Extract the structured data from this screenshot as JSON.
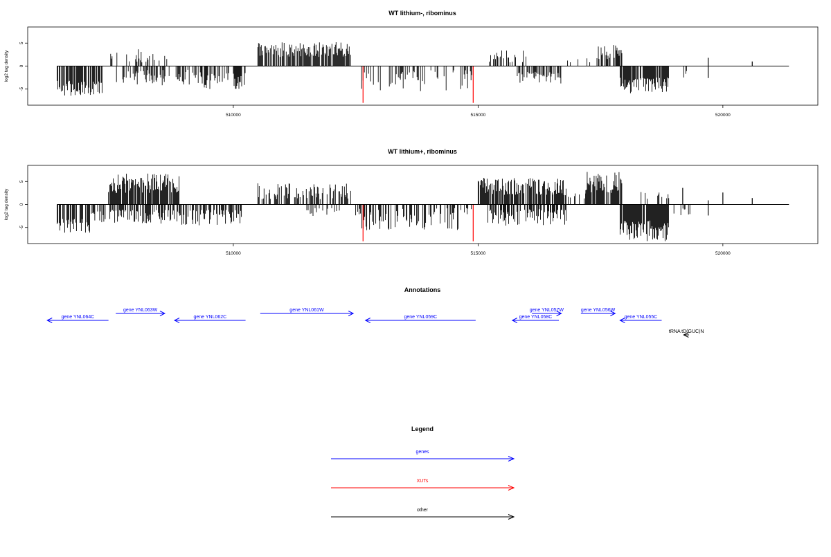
{
  "colors": {
    "gene": "#0000ff",
    "xut": "#ff0000",
    "other": "#000000",
    "bar": "#000000",
    "highlight": "#ff0000"
  },
  "chart_data": [
    {
      "type": "bar",
      "title": "WT lithium-, ribominus",
      "xlabel": "",
      "ylabel": "log2 tag density",
      "xlim": [
        505800,
        521940
      ],
      "ylim": [
        -8.5,
        8.5
      ],
      "x_ticks": [
        510000,
        515000,
        520000
      ],
      "x_tick_labels": [
        "510000",
        "515000",
        "520000"
      ],
      "y_ticks": [
        -5,
        0,
        5
      ],
      "y_tick_labels": [
        "-5",
        "0",
        "5"
      ],
      "baseline": 0,
      "baseline_range": [
        506400,
        521350
      ],
      "grid": false,
      "highlight_bars": [
        {
          "x": 512650,
          "value": -8.0
        },
        {
          "x": 514900,
          "value": -8.0
        }
      ],
      "regions": [
        {
          "start": 506400,
          "end": 507320,
          "strand": "minus",
          "min": 3.2,
          "max": 6.6,
          "density": 0.75
        },
        {
          "start": 507480,
          "end": 508640,
          "strand": "plus",
          "min": 0.8,
          "max": 4.0,
          "density": 0.3
        },
        {
          "start": 507600,
          "end": 509350,
          "strand": "minus",
          "min": 0.8,
          "max": 4.2,
          "density": 0.45
        },
        {
          "start": 509350,
          "end": 510250,
          "strand": "minus",
          "min": 1.5,
          "max": 5.0,
          "density": 0.55
        },
        {
          "start": 510500,
          "end": 512400,
          "strand": "plus",
          "min": 2.0,
          "max": 5.2,
          "density": 0.8
        },
        {
          "start": 512550,
          "end": 514900,
          "strand": "minus",
          "min": 0.8,
          "max": 5.6,
          "density": 0.3
        },
        {
          "start": 515200,
          "end": 516000,
          "strand": "plus",
          "min": 0.8,
          "max": 3.5,
          "density": 0.3
        },
        {
          "start": 515800,
          "end": 516700,
          "strand": "minus",
          "min": 1.2,
          "max": 3.8,
          "density": 0.5
        },
        {
          "start": 516700,
          "end": 517300,
          "strand": "plus",
          "min": 0.8,
          "max": 1.8,
          "density": 0.15
        },
        {
          "start": 517400,
          "end": 517950,
          "strand": "plus",
          "min": 1.5,
          "max": 5.2,
          "density": 0.7
        },
        {
          "start": 517900,
          "end": 518900,
          "strand": "minus",
          "min": 2.5,
          "max": 6.0,
          "density": 0.85
        },
        {
          "start": 519200,
          "end": 519300,
          "strand": "minus",
          "min": 1.0,
          "max": 2.5,
          "density": 0.2
        }
      ],
      "single_bars": [
        {
          "x": 519700,
          "value": 1.8
        },
        {
          "x": 519700,
          "value": -2.6
        },
        {
          "x": 520600,
          "value": 1.0
        }
      ]
    },
    {
      "type": "bar",
      "title": "WT lithium+, ribominus",
      "xlabel": "",
      "ylabel": "log2 tag density",
      "xlim": [
        505800,
        521940
      ],
      "ylim": [
        -8.5,
        8.5
      ],
      "x_ticks": [
        510000,
        515000,
        520000
      ],
      "x_tick_labels": [
        "510000",
        "515000",
        "520000"
      ],
      "y_ticks": [
        -5,
        0,
        5
      ],
      "y_tick_labels": [
        "-5",
        "0",
        "5"
      ],
      "baseline": 0,
      "baseline_range": [
        506400,
        521350
      ],
      "grid": false,
      "highlight_bars": [
        {
          "x": 512650,
          "value": -8.0
        },
        {
          "x": 514900,
          "value": -8.0
        }
      ],
      "regions": [
        {
          "start": 506400,
          "end": 507100,
          "strand": "minus",
          "min": 3.0,
          "max": 6.2,
          "density": 0.7
        },
        {
          "start": 507100,
          "end": 507450,
          "strand": "minus",
          "min": 1.5,
          "max": 4.0,
          "density": 0.5
        },
        {
          "start": 507450,
          "end": 508900,
          "strand": "plus",
          "min": 2.5,
          "max": 6.8,
          "density": 0.85
        },
        {
          "start": 507450,
          "end": 510200,
          "strand": "minus",
          "min": 1.2,
          "max": 4.6,
          "density": 0.55
        },
        {
          "start": 510500,
          "end": 512400,
          "strand": "plus",
          "min": 1.0,
          "max": 4.6,
          "density": 0.55
        },
        {
          "start": 511500,
          "end": 512200,
          "strand": "minus",
          "min": 0.8,
          "max": 2.5,
          "density": 0.25
        },
        {
          "start": 512500,
          "end": 514900,
          "strand": "minus",
          "min": 0.8,
          "max": 5.8,
          "density": 0.45
        },
        {
          "start": 515000,
          "end": 516800,
          "strand": "plus",
          "min": 2.0,
          "max": 5.8,
          "density": 0.85
        },
        {
          "start": 515200,
          "end": 516800,
          "strand": "minus",
          "min": 1.0,
          "max": 4.6,
          "density": 0.55
        },
        {
          "start": 516800,
          "end": 517200,
          "strand": "plus",
          "min": 0.8,
          "max": 2.5,
          "density": 0.2
        },
        {
          "start": 517200,
          "end": 517950,
          "strand": "plus",
          "min": 2.5,
          "max": 7.2,
          "density": 0.8
        },
        {
          "start": 517900,
          "end": 518900,
          "strand": "minus",
          "min": 3.5,
          "max": 8.0,
          "density": 0.95
        },
        {
          "start": 518300,
          "end": 518900,
          "strand": "plus",
          "min": 0.8,
          "max": 2.8,
          "density": 0.3
        },
        {
          "start": 519000,
          "end": 519350,
          "strand": "minus",
          "min": 0.8,
          "max": 2.5,
          "density": 0.25
        }
      ],
      "single_bars": [
        {
          "x": 519180,
          "value": 3.6
        },
        {
          "x": 519700,
          "value": 0.9
        },
        {
          "x": 519700,
          "value": -2.4
        },
        {
          "x": 520000,
          "value": 2.6
        },
        {
          "x": 520600,
          "value": 1.4
        }
      ]
    }
  ],
  "annotations": {
    "title": "Annotations",
    "items": [
      {
        "label": "gene YNL064C",
        "start": 506200,
        "end": 507450,
        "strand": "-",
        "type": "gene",
        "row": 1
      },
      {
        "label": "gene YNL063W",
        "start": 507600,
        "end": 508600,
        "strand": "+",
        "type": "gene",
        "row": 0
      },
      {
        "label": "gene YNL062C",
        "start": 508800,
        "end": 510250,
        "strand": "-",
        "type": "gene",
        "row": 1
      },
      {
        "label": "gene YNL061W",
        "start": 510550,
        "end": 512450,
        "strand": "+",
        "type": "gene",
        "row": 0
      },
      {
        "label": "gene YNL059C",
        "start": 512700,
        "end": 514950,
        "strand": "-",
        "type": "gene",
        "row": 1
      },
      {
        "label": "gene YNL057W",
        "start": 516100,
        "end": 516700,
        "strand": "+",
        "type": "gene",
        "row": 0
      },
      {
        "label": "gene YNL058C",
        "start": 515700,
        "end": 516650,
        "strand": "-",
        "type": "gene",
        "row": 1
      },
      {
        "label": "gene YNL056W",
        "start": 517100,
        "end": 517800,
        "strand": "+",
        "type": "gene",
        "row": 0
      },
      {
        "label": "gene YNL055C",
        "start": 517900,
        "end": 518750,
        "strand": "-",
        "type": "gene",
        "row": 1
      },
      {
        "label": "tRNA tD(GUC)N",
        "start": 519200,
        "end": 519310,
        "strand": "-",
        "type": "other",
        "row": 2
      }
    ]
  },
  "legend": {
    "title": "Legend",
    "items": [
      {
        "label": "genes",
        "type": "gene"
      },
      {
        "label": "XUTs",
        "type": "xut"
      },
      {
        "label": "other",
        "type": "other"
      }
    ]
  }
}
